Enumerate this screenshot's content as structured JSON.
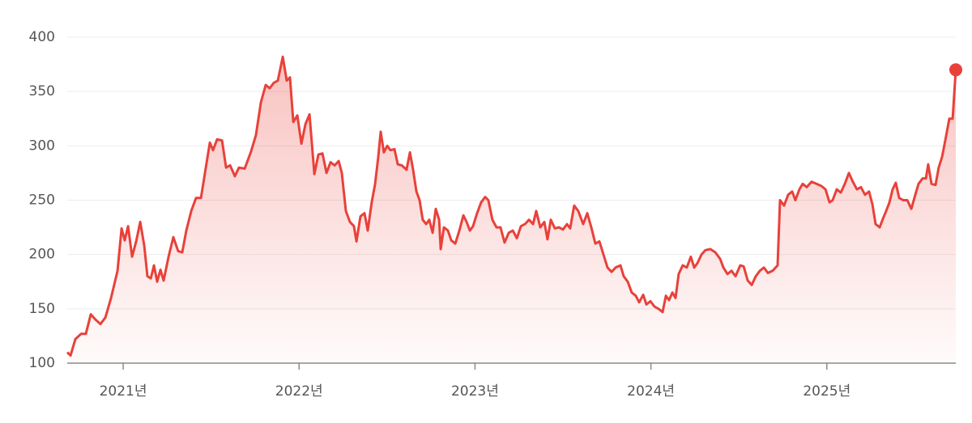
{
  "chart_data": {
    "type": "line",
    "color": "#e8413a",
    "area": true,
    "grid": true,
    "ylim": [
      100,
      400
    ],
    "yticks": [
      100,
      150,
      200,
      250,
      300,
      350,
      400
    ],
    "xlim": [
      2020.682,
      2025.733
    ],
    "xticks": [
      {
        "value": 2021,
        "label": "2021년"
      },
      {
        "value": 2022,
        "label": "2022년"
      },
      {
        "value": 2023,
        "label": "2023년"
      },
      {
        "value": 2024,
        "label": "2024년"
      },
      {
        "value": 2025,
        "label": "2025년"
      }
    ],
    "x": [
      2020.682,
      2020.701,
      2020.728,
      2020.761,
      2020.788,
      2020.816,
      2020.843,
      2020.871,
      2020.899,
      2020.931,
      2020.968,
      2020.991,
      2021.009,
      2021.028,
      2021.051,
      2021.074,
      2021.097,
      2021.12,
      2021.138,
      2021.157,
      2021.175,
      2021.193,
      2021.212,
      2021.23,
      2021.258,
      2021.285,
      2021.313,
      2021.336,
      2021.359,
      2021.387,
      2021.414,
      2021.442,
      2021.47,
      2021.493,
      2021.511,
      2021.534,
      2021.562,
      2021.585,
      2021.608,
      2021.635,
      2021.658,
      2021.691,
      2021.727,
      2021.755,
      2021.783,
      2021.81,
      2021.833,
      2021.856,
      2021.879,
      2021.907,
      2021.93,
      2021.948,
      2021.967,
      2021.99,
      2022.013,
      2022.036,
      2022.059,
      2022.087,
      2022.11,
      2022.133,
      2022.156,
      2022.179,
      2022.202,
      2022.225,
      2022.243,
      2022.266,
      2022.289,
      2022.312,
      2022.326,
      2022.349,
      2022.372,
      2022.39,
      2022.413,
      2022.432,
      2022.45,
      2022.464,
      2022.482,
      2022.501,
      2022.519,
      2022.542,
      2022.561,
      2022.584,
      2022.611,
      2022.63,
      2022.648,
      2022.667,
      2022.685,
      2022.703,
      2022.722,
      2022.74,
      2022.759,
      2022.777,
      2022.796,
      2022.805,
      2022.823,
      2022.846,
      2022.865,
      2022.888,
      2022.911,
      2022.934,
      2022.952,
      2022.971,
      2022.989,
      2023.012,
      2023.035,
      2023.058,
      2023.076,
      2023.099,
      2023.122,
      2023.145,
      2023.168,
      2023.192,
      2023.215,
      2023.238,
      2023.261,
      2023.284,
      2023.307,
      2023.33,
      2023.348,
      2023.371,
      2023.394,
      2023.412,
      2023.431,
      2023.454,
      2023.477,
      2023.5,
      2023.523,
      2023.541,
      2023.564,
      2023.587,
      2023.615,
      2023.638,
      2023.661,
      2023.684,
      2023.707,
      2023.73,
      2023.753,
      2023.776,
      2023.799,
      2023.827,
      2023.845,
      2023.868,
      2023.891,
      2023.914,
      2023.933,
      2023.956,
      2023.974,
      2023.997,
      2024.02,
      2024.043,
      2024.066,
      2024.085,
      2024.103,
      2024.122,
      2024.14,
      2024.158,
      2024.181,
      2024.204,
      2024.227,
      2024.246,
      2024.264,
      2024.287,
      2024.31,
      2024.338,
      2024.366,
      2024.393,
      2024.412,
      2024.435,
      2024.458,
      2024.481,
      2024.508,
      2024.527,
      2024.55,
      2024.573,
      2024.596,
      2024.619,
      2024.642,
      2024.665,
      2024.692,
      2024.72,
      2024.734,
      2024.757,
      2024.78,
      2024.803,
      2024.821,
      2024.844,
      2024.863,
      2024.886,
      2024.913,
      2024.941,
      2024.969,
      2024.992,
      2025.015,
      2025.033,
      2025.056,
      2025.079,
      2025.102,
      2025.125,
      2025.148,
      2025.171,
      2025.194,
      2025.217,
      2025.24,
      2025.259,
      2025.277,
      2025.3,
      2025.319,
      2025.337,
      2025.356,
      2025.374,
      2025.392,
      2025.411,
      2025.434,
      2025.457,
      2025.48,
      2025.503,
      2025.521,
      2025.544,
      2025.563,
      2025.576,
      2025.595,
      2025.618,
      2025.636,
      2025.655,
      2025.673,
      2025.696,
      2025.715,
      2025.733
    ],
    "values": [
      110,
      107,
      122,
      127,
      127,
      145,
      140,
      136,
      142,
      160,
      185,
      224,
      213,
      226,
      198,
      212,
      230,
      208,
      180,
      178,
      190,
      175,
      186,
      176,
      198,
      216,
      203,
      202,
      222,
      240,
      252,
      252,
      280,
      303,
      296,
      306,
      305,
      280,
      282,
      272,
      280,
      279,
      295,
      310,
      340,
      356,
      353,
      358,
      360,
      382,
      360,
      363,
      322,
      328,
      302,
      320,
      329,
      274,
      292,
      293,
      275,
      285,
      282,
      286,
      275,
      240,
      230,
      226,
      212,
      235,
      238,
      222,
      248,
      265,
      290,
      313,
      294,
      300,
      296,
      297,
      283,
      282,
      278,
      294,
      278,
      258,
      250,
      232,
      228,
      232,
      220,
      242,
      232,
      205,
      225,
      222,
      213,
      210,
      222,
      236,
      230,
      222,
      226,
      238,
      248,
      253,
      250,
      232,
      225,
      225,
      211,
      220,
      222,
      215,
      226,
      228,
      232,
      228,
      240,
      225,
      230,
      214,
      232,
      224,
      225,
      223,
      228,
      224,
      245,
      240,
      228,
      238,
      225,
      210,
      212,
      200,
      188,
      184,
      188,
      190,
      180,
      175,
      165,
      162,
      156,
      163,
      154,
      157,
      152,
      150,
      147,
      162,
      158,
      165,
      160,
      182,
      190,
      188,
      198,
      188,
      192,
      200,
      204,
      205,
      202,
      196,
      188,
      182,
      185,
      180,
      190,
      189,
      176,
      172,
      180,
      185,
      188,
      183,
      185,
      190,
      250,
      245,
      255,
      258,
      250,
      260,
      265,
      262,
      267,
      265,
      263,
      260,
      248,
      250,
      260,
      257,
      265,
      275,
      267,
      260,
      262,
      255,
      258,
      246,
      228,
      225,
      233,
      240,
      248,
      260,
      266,
      252,
      250,
      250,
      242,
      255,
      265,
      270,
      270,
      283,
      265,
      264,
      280,
      290,
      305,
      325,
      325,
      370
    ]
  }
}
